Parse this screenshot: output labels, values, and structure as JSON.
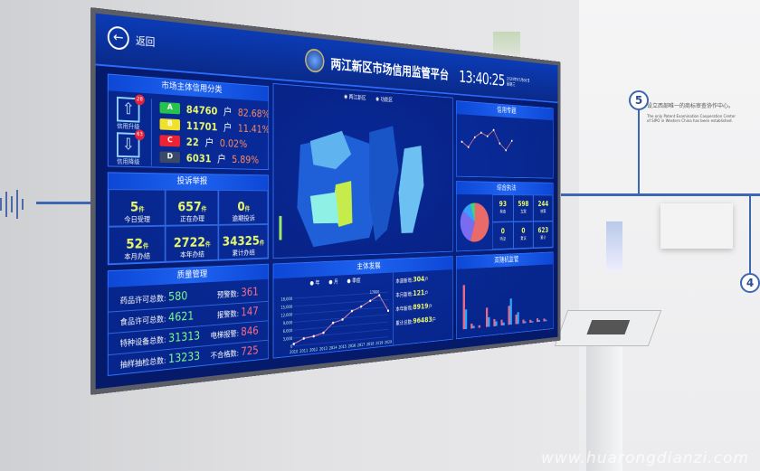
{
  "wall": {
    "step5": "5",
    "step4": "4",
    "caption_cn": "设立西部唯一的商标审查协作中心。",
    "caption_en": "The only Patent Examination Cooperation Center of SIPO in Western China has been established.",
    "watermark": "www.huarongdianzi.com"
  },
  "dashboard": {
    "back_label": "返回",
    "title": "两江新区市场信用监管平台",
    "time": "13:40:25",
    "date": "2020年07月08日 星期三",
    "credit": {
      "title": "市场主体信用分类",
      "upgrade_label": "信用升级",
      "upgrade_count": "28",
      "downgrade_label": "信用降级",
      "downgrade_count": "63",
      "grades": [
        {
          "grade": "A",
          "count": "84760",
          "unit": "户",
          "pct": "82.68%",
          "color": "#27c24c"
        },
        {
          "grade": "B",
          "count": "11701",
          "unit": "户",
          "pct": "11.41%",
          "color": "#f2e12a"
        },
        {
          "grade": "C",
          "count": "22",
          "unit": "户",
          "pct": "0.02%",
          "color": "#ee2233"
        },
        {
          "grade": "D",
          "count": "6031",
          "unit": "户",
          "pct": "5.89%",
          "color": "#3a4a66"
        }
      ]
    },
    "complaints": {
      "title": "投诉举报",
      "unit": "件",
      "cells": [
        {
          "value": "5",
          "label": "今日受理"
        },
        {
          "value": "657",
          "label": "正在办理"
        },
        {
          "value": "0",
          "label": "逾期投诉"
        },
        {
          "value": "52",
          "label": "本月办结"
        },
        {
          "value": "2722",
          "label": "本年办结"
        },
        {
          "value": "34325",
          "label": "累计办结"
        }
      ]
    },
    "quality": {
      "title": "质量管理",
      "left": [
        {
          "label": "药品许可总数:",
          "value": "580"
        },
        {
          "label": "食品许可总数:",
          "value": "4621"
        },
        {
          "label": "特种设备总数:",
          "value": "31313"
        },
        {
          "label": "抽样抽检总数:",
          "value": "13233"
        }
      ],
      "right": [
        {
          "label": "预警数:",
          "value": "361"
        },
        {
          "label": "报警数:",
          "value": "147"
        },
        {
          "label": "电梯报警:",
          "value": "846"
        },
        {
          "label": "不合格数:",
          "value": "725"
        }
      ]
    },
    "map": {
      "legend": [
        "两江新区",
        "功能区"
      ]
    },
    "development": {
      "title": "主体发展",
      "legend": [
        "年",
        "月",
        "季度"
      ],
      "chart_data": {
        "type": "line",
        "x": [
          "2010",
          "2011",
          "2012",
          "2013",
          "2014",
          "2015",
          "2016",
          "2017",
          "2018",
          "2019",
          "2020"
        ],
        "values": [
          800,
          2500,
          3000,
          4000,
          7500,
          8500,
          11500,
          13000,
          15000,
          17000,
          10500
        ],
        "ylim": [
          0,
          18000
        ],
        "yticks": [
          "0",
          "3,000",
          "6,000",
          "9,000",
          "12,000",
          "15,000",
          "18,000"
        ],
        "peak_label": "17000"
      },
      "stats": [
        {
          "label": "本周新增:",
          "value": "304",
          "unit": "户"
        },
        {
          "label": "本月新增:",
          "value": "121",
          "unit": "户"
        },
        {
          "label": "本年新增:",
          "value": "8919",
          "unit": "户"
        },
        {
          "label": "累计总数:",
          "value": "96483",
          "unit": "户"
        }
      ]
    },
    "topic": {
      "title": "信用专题",
      "chart_data": {
        "type": "line",
        "values": [
          3,
          2.4,
          3.6,
          4.2,
          3.8,
          4.6,
          3,
          2.2,
          3.4
        ]
      }
    },
    "enforcement": {
      "title": "综合执法",
      "pie": [
        {
          "value": 55,
          "color": "#e86a6a"
        },
        {
          "value": 30,
          "color": "#7a6cf0"
        },
        {
          "value": 10,
          "color": "#38a1ff"
        },
        {
          "value": 5,
          "color": "#3fd67a"
        }
      ],
      "cells": [
        {
          "value": "93",
          "label": "检查"
        },
        {
          "value": "598",
          "label": "立案"
        },
        {
          "value": "244",
          "label": "结案"
        },
        {
          "value": "0",
          "label": "听证"
        },
        {
          "value": "0",
          "label": "复议"
        },
        {
          "value": "623",
          "label": "累计"
        }
      ]
    },
    "random": {
      "title": "双随机监管",
      "chart_data": {
        "type": "bar",
        "a": [
          90,
          10,
          5,
          40,
          15,
          12,
          40,
          20,
          8,
          6,
          8,
          6
        ],
        "b": [
          40,
          5,
          0,
          20,
          10,
          6,
          55,
          25,
          4,
          3,
          4,
          3
        ]
      }
    }
  }
}
